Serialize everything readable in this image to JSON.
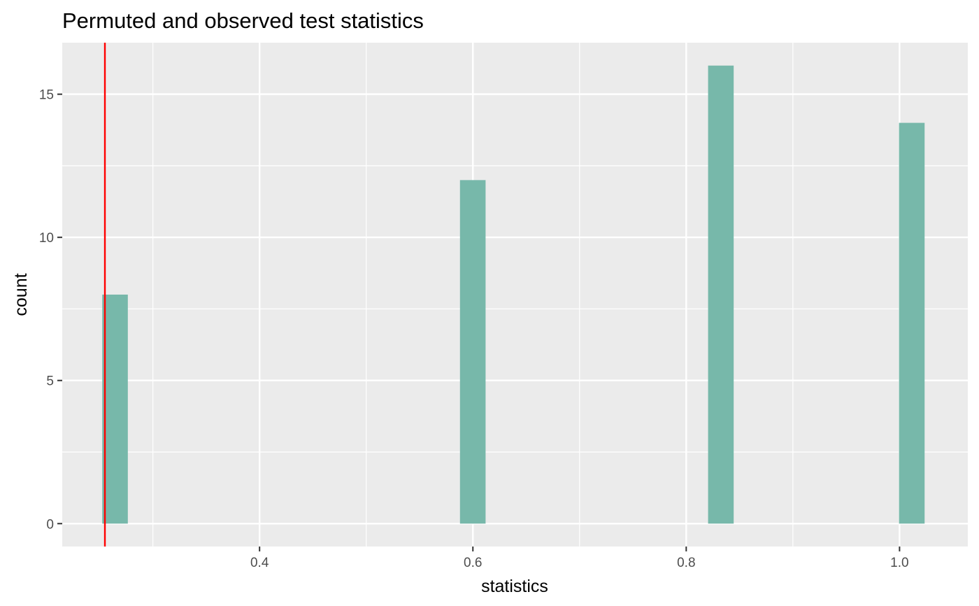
{
  "chart_data": {
    "type": "bar",
    "title": "Permuted and observed test statistics",
    "xlabel": "statistics",
    "ylabel": "count",
    "xlim": [
      0.215,
      1.064
    ],
    "ylim": [
      -0.8,
      16.8
    ],
    "x_ticks": [
      0.4,
      0.6,
      0.8,
      1.0
    ],
    "x_tick_labels": [
      "0.4",
      "0.6",
      "0.8",
      "1.0"
    ],
    "y_ticks": [
      0,
      5,
      10,
      15
    ],
    "y_tick_labels": [
      "0",
      "5",
      "10",
      "15"
    ],
    "bins": [
      {
        "x0": 0.2525,
        "x1": 0.2765,
        "count": 8
      },
      {
        "x0": 0.5879,
        "x1": 0.6119,
        "count": 12
      },
      {
        "x0": 0.8205,
        "x1": 0.8445,
        "count": 16
      },
      {
        "x0": 0.9995,
        "x1": 1.0235,
        "count": 14
      }
    ],
    "observed_statistic": 0.255,
    "grid": true,
    "colors": {
      "bar_fill": "#77b8aa",
      "observed_line": "#ff0000",
      "panel_background": "#ebebeb",
      "grid": "#ffffff"
    }
  }
}
